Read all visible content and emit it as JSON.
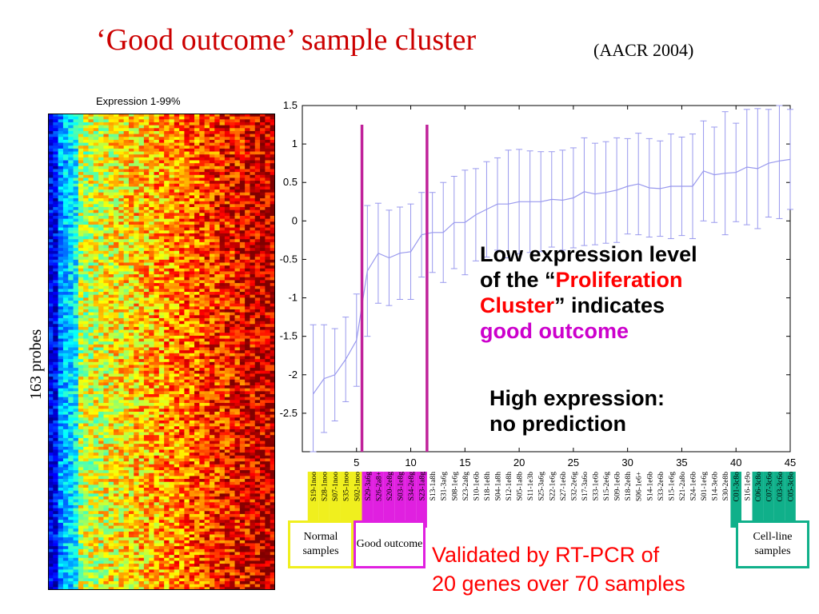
{
  "title": {
    "main": "‘Good outcome’ sample cluster",
    "aside": "(AACR 2004)"
  },
  "heatmap": {
    "caption": "Expression 1-99%",
    "row_label": "163 probes",
    "rows": 163,
    "cols": 45
  },
  "annotation": {
    "line1": "Low expression level",
    "line2_a": "of the “",
    "line2_b": "Proliferation",
    "line3_a": "Cluster",
    "line3_b": "”  indicates",
    "line4": "good outcome",
    "second_1": "High expression:",
    "second_2": "no prediction"
  },
  "boxes": {
    "normal": "Normal samples",
    "good": "Good outcome",
    "cell": "Cell-line samples"
  },
  "validated": {
    "line1": "Validated by RT-PCR  of",
    "line2": "20 genes over 70 samples"
  },
  "colors": {
    "title": "#cc0000",
    "normal": "#f0ef1e",
    "good": "#e020e0",
    "cell": "#10b08a",
    "line": "#9999ee",
    "divider": "#c0229a"
  },
  "chart_data": {
    "type": "line",
    "xlim": [
      0,
      45
    ],
    "ylim": [
      -3,
      1.5
    ],
    "xticks": [
      5,
      10,
      15,
      20,
      25,
      30,
      35,
      40,
      45
    ],
    "yticks": [
      1.5,
      1,
      0.5,
      0,
      -0.5,
      -1,
      -1.5,
      -2,
      -2.5
    ],
    "x": [
      1,
      2,
      3,
      4,
      5,
      6,
      7,
      8,
      9,
      10,
      11,
      12,
      13,
      14,
      15,
      16,
      17,
      18,
      19,
      20,
      21,
      22,
      23,
      24,
      25,
      26,
      27,
      28,
      29,
      30,
      31,
      32,
      33,
      34,
      35,
      36,
      37,
      38,
      39,
      40,
      41,
      42,
      43,
      44,
      45
    ],
    "series": [
      {
        "values": [
          -2.25,
          -2.05,
          -2.0,
          -1.8,
          -1.55,
          -0.65,
          -0.42,
          -0.48,
          -0.42,
          -0.4,
          -0.18,
          -0.15,
          -0.15,
          -0.02,
          -0.02,
          0.08,
          0.15,
          0.22,
          0.22,
          0.25,
          0.25,
          0.25,
          0.28,
          0.27,
          0.3,
          0.38,
          0.35,
          0.37,
          0.4,
          0.45,
          0.48,
          0.43,
          0.42,
          0.45,
          0.45,
          0.45,
          0.65,
          0.6,
          0.62,
          0.63,
          0.7,
          0.68,
          0.75,
          0.78,
          0.8
        ],
        "err": [
          0.9,
          0.7,
          0.6,
          0.55,
          0.6,
          0.85,
          0.65,
          0.62,
          0.6,
          0.62,
          0.55,
          0.52,
          0.65,
          0.6,
          0.68,
          0.6,
          0.62,
          0.6,
          0.7,
          0.68,
          0.66,
          0.65,
          0.62,
          0.65,
          0.65,
          0.7,
          0.66,
          0.66,
          0.68,
          0.62,
          0.66,
          0.64,
          0.62,
          0.68,
          0.64,
          0.68,
          0.65,
          0.62,
          0.8,
          0.64,
          0.75,
          0.78,
          0.7,
          0.75,
          0.65
        ]
      }
    ],
    "dividers_x": [
      5.5,
      11.5
    ],
    "sample_labels": [
      {
        "text": "S19-1noo",
        "group": "normal"
      },
      {
        "text": "S28-1noo",
        "group": "normal"
      },
      {
        "text": "S07-1noo",
        "group": "normal"
      },
      {
        "text": "S35-1noo",
        "group": "normal"
      },
      {
        "text": "S02-1noo",
        "group": "normal"
      },
      {
        "text": "S29-3a6g",
        "group": "good"
      },
      {
        "text": "S26-2a8+",
        "group": "good"
      },
      {
        "text": "S20-2e8g",
        "group": "good"
      },
      {
        "text": "S03-1e8g",
        "group": "good"
      },
      {
        "text": "S34-2e8g",
        "group": "good"
      },
      {
        "text": "S23-1a8g",
        "group": "good"
      },
      {
        "text": "S13-1a8h",
        "group": ""
      },
      {
        "text": "S31-3a6g",
        "group": ""
      },
      {
        "text": "S08-1e6g",
        "group": ""
      },
      {
        "text": "S23-2a8g",
        "group": ""
      },
      {
        "text": "S10-1e6b",
        "group": ""
      },
      {
        "text": "S18-1e8h",
        "group": ""
      },
      {
        "text": "S04-1a8h",
        "group": ""
      },
      {
        "text": "S12-1e8h",
        "group": ""
      },
      {
        "text": "S05-1a8b",
        "group": ""
      },
      {
        "text": "S11-1e3b",
        "group": ""
      },
      {
        "text": "S25-3a6g",
        "group": ""
      },
      {
        "text": "S22-1e6g",
        "group": ""
      },
      {
        "text": "S27-1e6b",
        "group": ""
      },
      {
        "text": "S32-2e6g",
        "group": ""
      },
      {
        "text": "S17-3a6o",
        "group": ""
      },
      {
        "text": "S33-1e6b",
        "group": ""
      },
      {
        "text": "S15-2e6g",
        "group": ""
      },
      {
        "text": "S09-1e6b",
        "group": ""
      },
      {
        "text": "S18-2e8h",
        "group": ""
      },
      {
        "text": "S06-1e6+",
        "group": ""
      },
      {
        "text": "S14-1e6b",
        "group": ""
      },
      {
        "text": "S33-2e6b",
        "group": ""
      },
      {
        "text": "S15-1e6g",
        "group": ""
      },
      {
        "text": "S21-2a8o",
        "group": ""
      },
      {
        "text": "S24-1e6b",
        "group": ""
      },
      {
        "text": "S01-1e6g",
        "group": ""
      },
      {
        "text": "S14-3e6b",
        "group": ""
      },
      {
        "text": "S30-2e8b",
        "group": ""
      },
      {
        "text": "C01-3c8o",
        "group": "cell"
      },
      {
        "text": "S16-1e9o",
        "group": ""
      },
      {
        "text": "C06-3c8o",
        "group": "cell"
      },
      {
        "text": "C07-3c6o",
        "group": "cell"
      },
      {
        "text": "C03-3c6o",
        "group": "cell"
      },
      {
        "text": "C05-3c8o",
        "group": "cell"
      }
    ]
  }
}
